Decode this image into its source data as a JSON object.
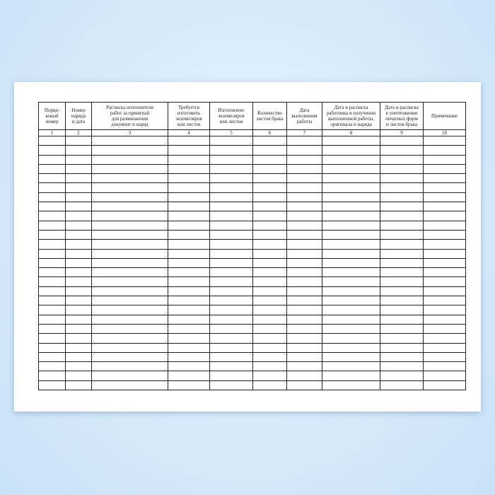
{
  "columns": [
    {
      "header": "Поряд-\nковый\nномер",
      "number": "1"
    },
    {
      "header": "Номер\nнаряда\nи дата",
      "number": "2"
    },
    {
      "header": "Расписка исполнителя\nработ за принятый\nдля размножения\nдокумент и наряд",
      "number": "3"
    },
    {
      "header": "Требуется\nизготовить\nэкземпляров\nили листов",
      "number": "4"
    },
    {
      "header": "Изготовлено\nэкземпляров\nили листов",
      "number": "5"
    },
    {
      "header": "Количество\nлистов брака",
      "number": "6"
    },
    {
      "header": "Дата\nвыполнения\nработы",
      "number": "7"
    },
    {
      "header": "Дата и расписка\nработника в получении\nвыполненной работы,\nоригинала и наряда",
      "number": "8"
    },
    {
      "header": "Дата и расписка\nв уничтожении\nпечатных форм\nи листов брака",
      "number": "9"
    },
    {
      "header": "Примечание",
      "number": "10"
    }
  ],
  "blank_rows": 27
}
